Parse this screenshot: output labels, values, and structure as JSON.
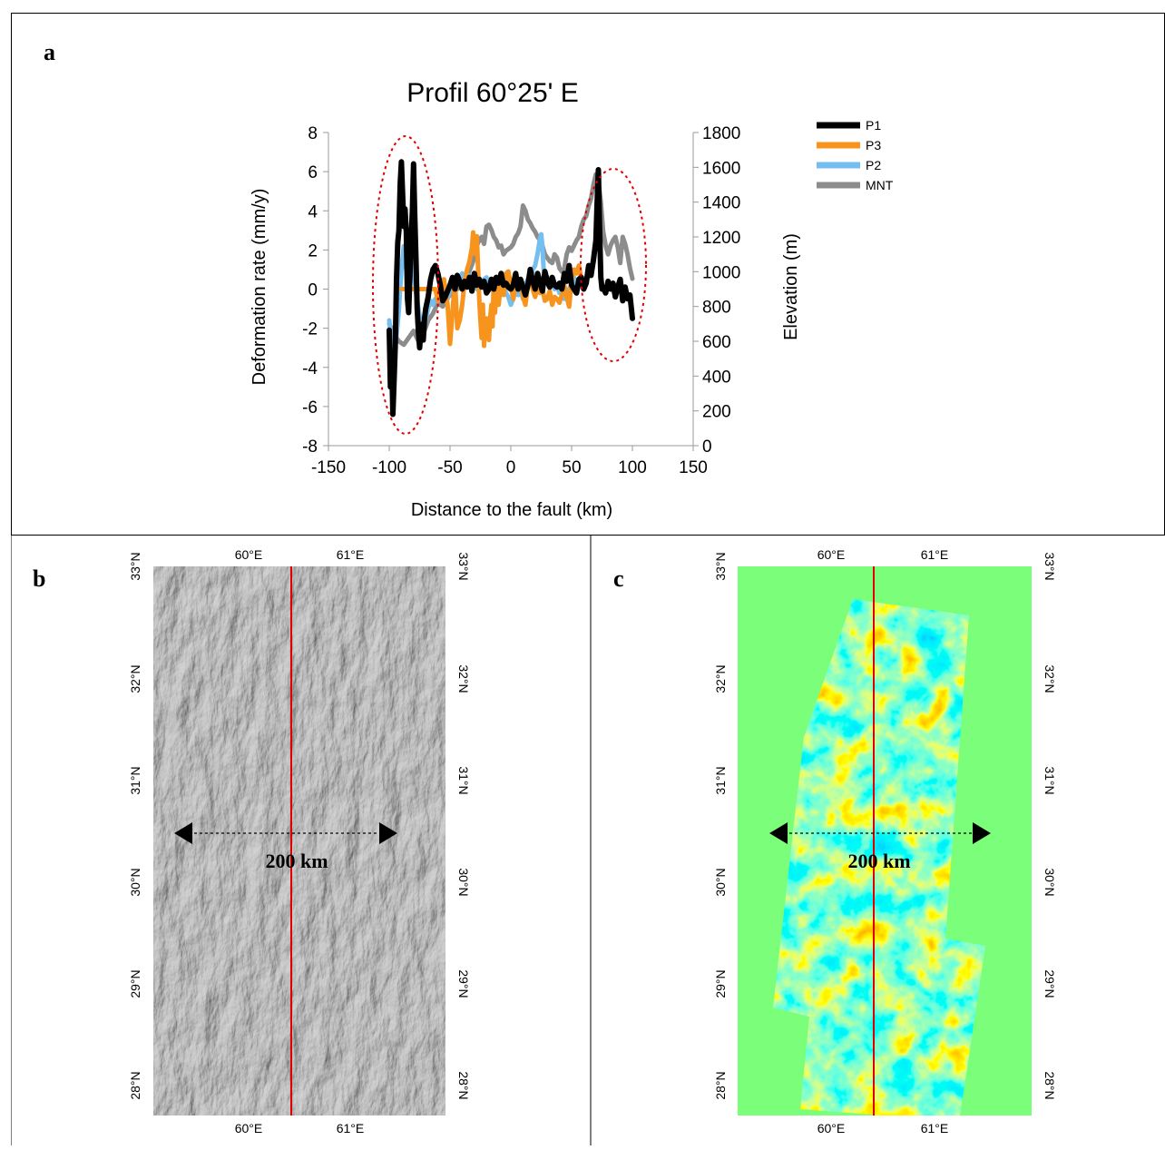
{
  "panels": {
    "a": {
      "letter": "a"
    },
    "b": {
      "letter": "b"
    },
    "c": {
      "letter": "c"
    }
  },
  "chart_data": [
    {
      "type": "line",
      "title": "Profil 60°25' E",
      "xlabel": "Distance to the fault (km)",
      "ylabel": "Deformation rate (mm/y)",
      "y2label": "Elevation (m)",
      "xlim": [
        -150,
        150
      ],
      "xticks": [
        "-150",
        "-100",
        "-50",
        "0",
        "50",
        "100",
        "150"
      ],
      "ylim": [
        -8,
        8
      ],
      "yticks": [
        "-8",
        "-6",
        "-4",
        "-2",
        "0",
        "2",
        "4",
        "6",
        "8"
      ],
      "y2lim": [
        0,
        1800
      ],
      "y2ticks": [
        "0",
        "200",
        "400",
        "600",
        "800",
        "1000",
        "1200",
        "1400",
        "1600",
        "1800"
      ],
      "legend_position": "right",
      "grid": false,
      "annotations": [
        "dashed red ellipse around x≈-90 to -60",
        "dashed red ellipse around x≈55 to 100"
      ],
      "series": [
        {
          "name": "P1",
          "color": "#000000",
          "axis": "left",
          "x": [
            -100,
            -99,
            -98,
            -97,
            -96,
            -95,
            -94,
            -93,
            -92,
            -91,
            -90,
            -89,
            -88,
            -87,
            -86,
            -85,
            -84,
            -83,
            -82,
            -81,
            -80,
            -79,
            -78,
            -77,
            -76,
            -75,
            -74,
            -73,
            -72,
            -71,
            -70,
            -68,
            -66,
            -64,
            -62,
            -60,
            -58,
            -56,
            -54,
            -52,
            -50,
            -48,
            -46,
            -44,
            -42,
            -40,
            -38,
            -36,
            -34,
            -32,
            -30,
            -28,
            -26,
            -24,
            -22,
            -20,
            -18,
            -16,
            -14,
            -12,
            -10,
            -8,
            -6,
            -4,
            -2,
            0,
            2,
            4,
            6,
            8,
            10,
            12,
            14,
            16,
            18,
            20,
            22,
            24,
            26,
            28,
            30,
            32,
            34,
            36,
            38,
            40,
            42,
            44,
            46,
            48,
            50,
            52,
            54,
            56,
            58,
            60,
            62,
            64,
            66,
            68,
            70,
            71,
            72,
            73,
            74,
            75,
            76,
            78,
            80,
            82,
            84,
            86,
            88,
            90,
            92,
            94,
            96,
            98,
            100
          ],
          "y": [
            -2.1,
            -5.0,
            -3.5,
            -6.4,
            -4.6,
            -2.8,
            0.5,
            2.4,
            3.0,
            5.4,
            6.5,
            4.9,
            3.2,
            4.1,
            2.9,
            -0.5,
            -1.2,
            0.7,
            2.6,
            4.0,
            6.4,
            3.8,
            1.5,
            -1.0,
            -2.2,
            -3.0,
            -2.1,
            -1.8,
            -2.6,
            -1.5,
            -1.0,
            -0.4,
            0.5,
            1.0,
            1.2,
            0.8,
            0.2,
            -0.6,
            -0.4,
            -0.1,
            0.2,
            0.6,
            0.0,
            0.7,
            0.4,
            0.0,
            0.4,
            0.1,
            0.6,
            -0.1,
            0.8,
            0.2,
            0.5,
            0.1,
            0.4,
            -0.2,
            0.0,
            0.5,
            0.0,
            0.6,
            0.3,
            0.8,
            0.2,
            0.3,
            0.1,
            0.0,
            0.2,
            0.8,
            0.0,
            0.5,
            0.1,
            -0.3,
            0.2,
            1.0,
            0.4,
            0.0,
            0.8,
            0.3,
            -0.1,
            0.9,
            0.4,
            0.1,
            0.6,
            0.2,
            0.1,
            0.3,
            0.0,
            0.8,
            0.4,
            1.2,
            0.2,
            0.0,
            -0.2,
            0.5,
            0.6,
            0.0,
            0.3,
            1.2,
            0.7,
            1.5,
            2.5,
            4.4,
            6.1,
            3.2,
            0.6,
            0.0,
            0.1,
            -0.2,
            0.4,
            0.0,
            0.3,
            -0.4,
            0.1,
            0.5,
            -0.6,
            0.1,
            -0.5,
            -0.3,
            -1.5
          ]
        },
        {
          "name": "P3",
          "color": "#f7941d",
          "axis": "left",
          "x": [
            -90,
            -80,
            -70,
            -62,
            -60,
            -58,
            -56,
            -55,
            -54,
            -52,
            -50,
            -48,
            -46,
            -44,
            -42,
            -40,
            -38,
            -36,
            -34,
            -32,
            -31,
            -30,
            -29,
            -28,
            -27,
            -26,
            -25,
            -24,
            -23,
            -22,
            -21,
            -20,
            -19,
            -18,
            -17,
            -16,
            -15,
            -14,
            -13,
            -12,
            -10,
            -8,
            -6,
            -4,
            -2,
            0,
            2,
            4,
            6,
            8,
            10,
            12,
            14,
            16,
            18,
            20,
            22,
            24,
            26,
            28,
            30,
            32,
            34,
            36,
            38,
            40,
            42,
            44,
            46,
            48,
            50,
            52,
            54,
            56,
            58,
            60
          ],
          "y": [
            0.0,
            0.0,
            0.0,
            0.0,
            -0.6,
            0.1,
            -0.3,
            0.5,
            0.0,
            -0.8,
            -2.8,
            -1.2,
            0.5,
            -2.0,
            -1.6,
            -0.8,
            0.4,
            1.0,
            1.4,
            2.1,
            2.9,
            1.8,
            2.0,
            2.7,
            1.2,
            -0.5,
            -1.6,
            -2.5,
            -0.8,
            -2.9,
            -1.8,
            -1.5,
            -2.3,
            -2.6,
            -1.5,
            -0.8,
            -1.9,
            0.5,
            -1.2,
            0.2,
            -0.8,
            0.4,
            -0.3,
            0.8,
            0.9,
            0.2,
            -0.5,
            0.3,
            0.0,
            0.5,
            -0.4,
            -0.8,
            0.2,
            0.5,
            0.0,
            -0.4,
            0.1,
            -0.2,
            0.0,
            -0.6,
            -0.5,
            -0.1,
            -0.8,
            -0.4,
            -0.5,
            -0.7,
            -0.3,
            0.2,
            -0.4,
            -0.9,
            0.5,
            1.0,
            0.8,
            1.2,
            0.5,
            0.0
          ]
        },
        {
          "name": "P2",
          "color": "#74bef0",
          "axis": "left",
          "x": [
            -100,
            -98,
            -96,
            -94,
            -92,
            -90,
            -88,
            -86,
            -84,
            -82,
            -80,
            -78,
            -76,
            -74,
            -72,
            -70,
            -68,
            -66,
            -64,
            -62,
            -60,
            -58,
            -56,
            -54,
            -52,
            -50,
            -48,
            -46,
            -44,
            -42,
            -40,
            -38,
            -36,
            -34,
            -32,
            -30,
            -28,
            -26,
            -24,
            -22,
            -20,
            -18,
            -16,
            -14,
            -12,
            -10,
            -8,
            -6,
            -4,
            -2,
            0,
            2,
            4,
            6,
            8,
            10,
            12,
            14,
            16,
            18,
            20,
            22,
            24,
            25,
            26,
            27,
            28,
            30,
            32,
            34,
            36,
            38,
            40,
            42,
            44,
            46,
            48,
            50,
            52,
            54,
            56,
            58,
            60
          ],
          "y": [
            -1.6,
            -2.8,
            -3.5,
            -2.4,
            -1.0,
            1.0,
            2.2,
            1.0,
            0.5,
            1.5,
            1.0,
            -0.2,
            -1.0,
            -1.8,
            -2.0,
            -1.5,
            -1.0,
            -0.6,
            -0.8,
            -0.5,
            -0.6,
            -0.3,
            -0.2,
            0.2,
            -0.5,
            0.0,
            0.3,
            0.2,
            0.6,
            0.4,
            0.8,
            0.5,
            0.2,
            0.7,
            0.3,
            0.5,
            0.0,
            0.4,
            0.2,
            0.5,
            0.6,
            0.0,
            0.3,
            0.5,
            0.1,
            0.3,
            0.0,
            0.2,
            -0.2,
            -0.4,
            -0.8,
            -0.5,
            0.0,
            -0.3,
            0.0,
            -0.5,
            0.2,
            0.5,
            0.3,
            1.0,
            1.2,
            1.8,
            2.6,
            2.8,
            2.2,
            1.0,
            0.8,
            0.6,
            0.2,
            0.4,
            0.0,
            0.2,
            -0.2,
            0.1,
            -0.5,
            -0.2,
            0.0,
            0.3,
            0.6,
            0.0,
            0.4,
            0.1,
            0.0
          ]
        },
        {
          "name": "MNT",
          "color": "#8c8c8c",
          "axis": "right",
          "x": [
            -100,
            -96,
            -92,
            -88,
            -84,
            -80,
            -76,
            -72,
            -68,
            -64,
            -60,
            -56,
            -52,
            -48,
            -44,
            -40,
            -36,
            -32,
            -30,
            -28,
            -26,
            -24,
            -22,
            -20,
            -18,
            -16,
            -14,
            -12,
            -10,
            -8,
            -6,
            -4,
            -2,
            0,
            2,
            4,
            6,
            8,
            10,
            12,
            14,
            16,
            18,
            20,
            22,
            24,
            26,
            28,
            30,
            32,
            34,
            36,
            38,
            40,
            42,
            44,
            46,
            48,
            50,
            52,
            54,
            56,
            58,
            60,
            62,
            64,
            66,
            68,
            70,
            72,
            74,
            76,
            78,
            80,
            82,
            84,
            86,
            88,
            90,
            92,
            94,
            96,
            98,
            100
          ],
          "y": [
            700,
            640,
            600,
            580,
            620,
            660,
            600,
            640,
            720,
            760,
            820,
            800,
            850,
            880,
            900,
            950,
            970,
            1040,
            1080,
            1150,
            1180,
            1200,
            1160,
            1260,
            1270,
            1240,
            1200,
            1180,
            1140,
            1150,
            1100,
            1120,
            1130,
            1140,
            1160,
            1200,
            1220,
            1260,
            1380,
            1350,
            1300,
            1280,
            1250,
            1230,
            1200,
            1180,
            1150,
            1100,
            1080,
            1060,
            1050,
            1100,
            1080,
            1020,
            1000,
            1020,
            1100,
            1140,
            1120,
            1150,
            1180,
            1200,
            1260,
            1300,
            1320,
            1380,
            1420,
            1500,
            1560,
            1520,
            1400,
            1230,
            1150,
            1100,
            1150,
            1180,
            1200,
            1140,
            1050,
            1200,
            1160,
            1100,
            1020,
            960
          ]
        }
      ]
    }
  ],
  "map_b": {
    "top_lon_labels": [
      "60°E",
      "61°E"
    ],
    "bottom_lon_labels": [
      "60°E",
      "61°E"
    ],
    "lat_labels": [
      "33°N",
      "32°N",
      "31°N",
      "30°N",
      "29°N",
      "28°N"
    ],
    "scale_label": "200 km"
  },
  "map_c": {
    "top_lon_labels": [
      "60°E",
      "61°E"
    ],
    "bottom_lon_labels": [
      "60°E",
      "61°E"
    ],
    "lat_labels": [
      "33°N",
      "32°N",
      "31°N",
      "30°N",
      "29°N",
      "28°N"
    ],
    "scale_label": "200 km"
  },
  "colors": {
    "profile_line": "#e00000",
    "ellipse": "#e00000",
    "map_c_background": "#7bff7b"
  }
}
